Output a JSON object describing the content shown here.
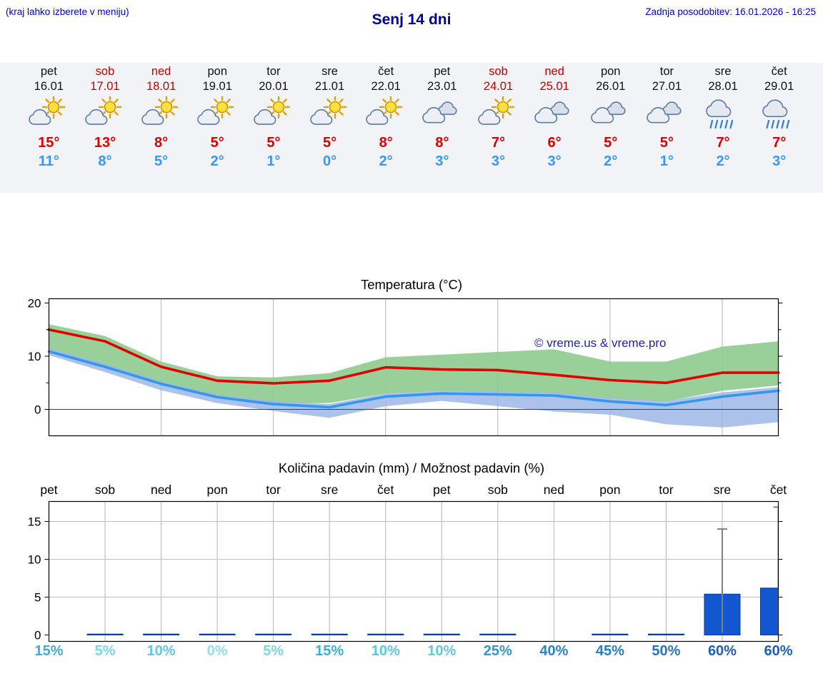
{
  "header": {
    "hint": "(kraj lahko izberete v meniju)",
    "title": "Senj 14 dni",
    "updated": "Zadnja posodobitev: 16.01.2026 - 16:25"
  },
  "colors": {
    "header_text": "#0000cd",
    "title_text": "#000099",
    "max_temp": "#dd0000",
    "min_temp": "#3399ff",
    "weekend": "#c80000",
    "strip_background": "#f2f3f6"
  },
  "forecast": {
    "days": [
      {
        "day": "pet",
        "date": "16.01",
        "weekend": false,
        "icon": "partly-cloudy",
        "tmax": "15°",
        "tmin": "11°"
      },
      {
        "day": "sob",
        "date": "17.01",
        "weekend": true,
        "icon": "partly-cloudy",
        "tmax": "13°",
        "tmin": "8°"
      },
      {
        "day": "ned",
        "date": "18.01",
        "weekend": true,
        "icon": "partly-cloudy",
        "tmax": "8°",
        "tmin": "5°"
      },
      {
        "day": "pon",
        "date": "19.01",
        "weekend": false,
        "icon": "partly-cloudy",
        "tmax": "5°",
        "tmin": "2°"
      },
      {
        "day": "tor",
        "date": "20.01",
        "weekend": false,
        "icon": "partly-cloudy",
        "tmax": "5°",
        "tmin": "1°"
      },
      {
        "day": "sre",
        "date": "21.01",
        "weekend": false,
        "icon": "partly-cloudy",
        "tmax": "5°",
        "tmin": "0°"
      },
      {
        "day": "čet",
        "date": "22.01",
        "weekend": false,
        "icon": "partly-cloudy",
        "tmax": "8°",
        "tmin": "2°"
      },
      {
        "day": "pet",
        "date": "23.01",
        "weekend": false,
        "icon": "cloudy",
        "tmax": "8°",
        "tmin": "3°"
      },
      {
        "day": "sob",
        "date": "24.01",
        "weekend": true,
        "icon": "partly-cloudy",
        "tmax": "7°",
        "tmin": "3°"
      },
      {
        "day": "ned",
        "date": "25.01",
        "weekend": true,
        "icon": "cloudy",
        "tmax": "6°",
        "tmin": "3°"
      },
      {
        "day": "pon",
        "date": "26.01",
        "weekend": false,
        "icon": "cloudy",
        "tmax": "5°",
        "tmin": "2°"
      },
      {
        "day": "tor",
        "date": "27.01",
        "weekend": false,
        "icon": "cloudy",
        "tmax": "5°",
        "tmin": "1°"
      },
      {
        "day": "sre",
        "date": "28.01",
        "weekend": false,
        "icon": "rain",
        "tmax": "7°",
        "tmin": "2°"
      },
      {
        "day": "čet",
        "date": "29.01",
        "weekend": false,
        "icon": "rain",
        "tmax": "7°",
        "tmin": "3°"
      }
    ]
  },
  "chart_data": [
    {
      "type": "line",
      "title": "Temperatura (°C)",
      "watermark": "© vreme.us & vreme.pro",
      "x_labels": [
        "pet",
        "sob",
        "ned",
        "pon",
        "tor",
        "sre",
        "čet",
        "pet",
        "sob",
        "ned",
        "pon",
        "tor",
        "sre",
        "čet"
      ],
      "ylim": [
        -5,
        20.8
      ],
      "yticks": [
        0,
        10,
        20
      ],
      "minor_yticks": [
        5,
        15
      ],
      "grid_x_every": 2,
      "series": [
        {
          "name": "max-temperature",
          "color": "#e00000",
          "values": [
            15,
            12.8,
            8,
            5.4,
            4.9,
            5.4,
            7.9,
            7.5,
            7.4,
            6.5,
            5.5,
            5,
            6.9,
            6.9
          ]
        },
        {
          "name": "min-temperature",
          "color": "#3397f0",
          "values": [
            10.9,
            8,
            4.8,
            2.3,
            1,
            0.4,
            2.4,
            3,
            2.8,
            2.6,
            1.5,
            0.8,
            2.4,
            3.5
          ]
        }
      ],
      "bands": [
        {
          "name": "max-range",
          "color": "#8ecb8e",
          "opacity": 0.9,
          "upper": [
            16,
            13.8,
            9,
            6.2,
            6,
            6.8,
            9.8,
            10.3,
            10.8,
            11.3,
            9,
            9,
            11.8,
            12.8
          ],
          "lower": [
            11,
            8,
            4.5,
            2.2,
            1.2,
            1.2,
            3,
            3.5,
            3.2,
            3,
            2,
            1.5,
            3.5,
            4.5
          ]
        },
        {
          "name": "min-range",
          "color": "#9db7e6",
          "opacity": 0.85,
          "upper": [
            11.5,
            8.6,
            5.2,
            2.8,
            1.6,
            1,
            3,
            3.6,
            3.4,
            3.2,
            2.2,
            1.6,
            3.2,
            4.2
          ],
          "lower": [
            10.2,
            7,
            3.6,
            1.2,
            -0.3,
            -1.6,
            0.6,
            1.6,
            0.6,
            -0.4,
            -1,
            -2.8,
            -3.4,
            -2.4
          ]
        }
      ]
    },
    {
      "type": "bar",
      "title": "Količina padavin (mm) / Možnost padavin (%)",
      "categories": [
        "pet",
        "sob",
        "ned",
        "pon",
        "tor",
        "sre",
        "čet",
        "pet",
        "sob",
        "ned",
        "pon",
        "tor",
        "sre",
        "čet"
      ],
      "values_mm": [
        0,
        0.12,
        0.12,
        0.12,
        0.12,
        0.12,
        0.12,
        0.12,
        0.12,
        0,
        0.12,
        0.12,
        5.4,
        6.2
      ],
      "whiskers_mm": [
        null,
        null,
        null,
        null,
        null,
        null,
        null,
        null,
        null,
        null,
        null,
        null,
        14,
        16.9
      ],
      "ylim": [
        0,
        17.6
      ],
      "yticks": [
        0,
        5,
        10,
        15
      ],
      "bar_color": "#1257d0",
      "bar_edge": "#0a3a8c",
      "whisker_color": "#808080",
      "probabilities": [
        {
          "label": "15%",
          "color": "#3eaed6"
        },
        {
          "label": "5%",
          "color": "#7dd6e8"
        },
        {
          "label": "10%",
          "color": "#62c8e0"
        },
        {
          "label": "0%",
          "color": "#90e0ee"
        },
        {
          "label": "5%",
          "color": "#7dd6e8"
        },
        {
          "label": "15%",
          "color": "#3eaed6"
        },
        {
          "label": "10%",
          "color": "#62c8e0"
        },
        {
          "label": "10%",
          "color": "#62c8e0"
        },
        {
          "label": "25%",
          "color": "#3795d0"
        },
        {
          "label": "40%",
          "color": "#2d82c8"
        },
        {
          "label": "45%",
          "color": "#2b7cc6"
        },
        {
          "label": "50%",
          "color": "#2972c2"
        },
        {
          "label": "60%",
          "color": "#2060b6"
        },
        {
          "label": "60%",
          "color": "#2060b6"
        }
      ]
    }
  ]
}
